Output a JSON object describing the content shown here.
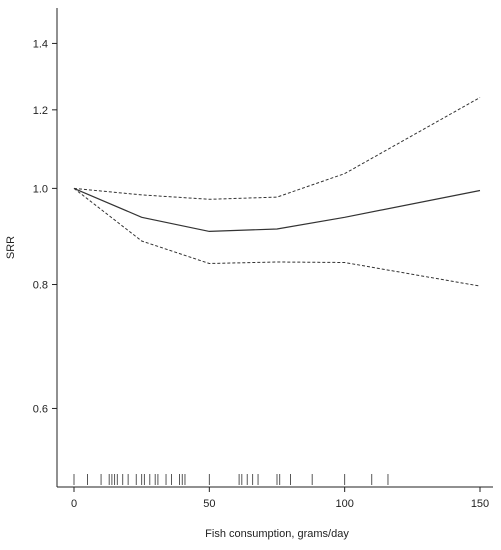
{
  "chart_data": {
    "type": "line",
    "title": "",
    "xlabel": "Fish consumption, grams/day",
    "ylabel": "SRR",
    "y_scale": "log",
    "xlim": [
      0,
      150
    ],
    "ylim": [
      0.5,
      1.52
    ],
    "x_ticks": [
      0,
      50,
      100,
      150
    ],
    "y_ticks": [
      0.6,
      0.8,
      1.0,
      1.2,
      1.4
    ],
    "y_tick_labels": [
      "0.6",
      "0.8",
      "1.0",
      "1.2",
      "1.4"
    ],
    "x_tick_labels": [
      "0",
      "50",
      "100",
      "150"
    ],
    "grid": false,
    "series": [
      {
        "role": "estimate",
        "line_style": "solid",
        "x": [
          0,
          25,
          50,
          75,
          100,
          150
        ],
        "y": [
          1.0,
          0.935,
          0.905,
          0.91,
          0.935,
          0.995
        ]
      },
      {
        "role": "upper_ci",
        "line_style": "dashed",
        "x": [
          0,
          25,
          50,
          75,
          100,
          150
        ],
        "y": [
          1.0,
          0.985,
          0.975,
          0.98,
          1.035,
          1.235
        ]
      },
      {
        "role": "lower_ci",
        "line_style": "dashed",
        "x": [
          0,
          25,
          50,
          75,
          100,
          150
        ],
        "y": [
          1.0,
          0.885,
          0.84,
          0.843,
          0.842,
          0.797
        ]
      }
    ],
    "rug_x": [
      0,
      5,
      10,
      13,
      14,
      15,
      16,
      18,
      20,
      23,
      25,
      26,
      28,
      30,
      31,
      34,
      36,
      39,
      40,
      41,
      50,
      61,
      62,
      64,
      66,
      68,
      75,
      76,
      80,
      88,
      100,
      110,
      116
    ]
  }
}
